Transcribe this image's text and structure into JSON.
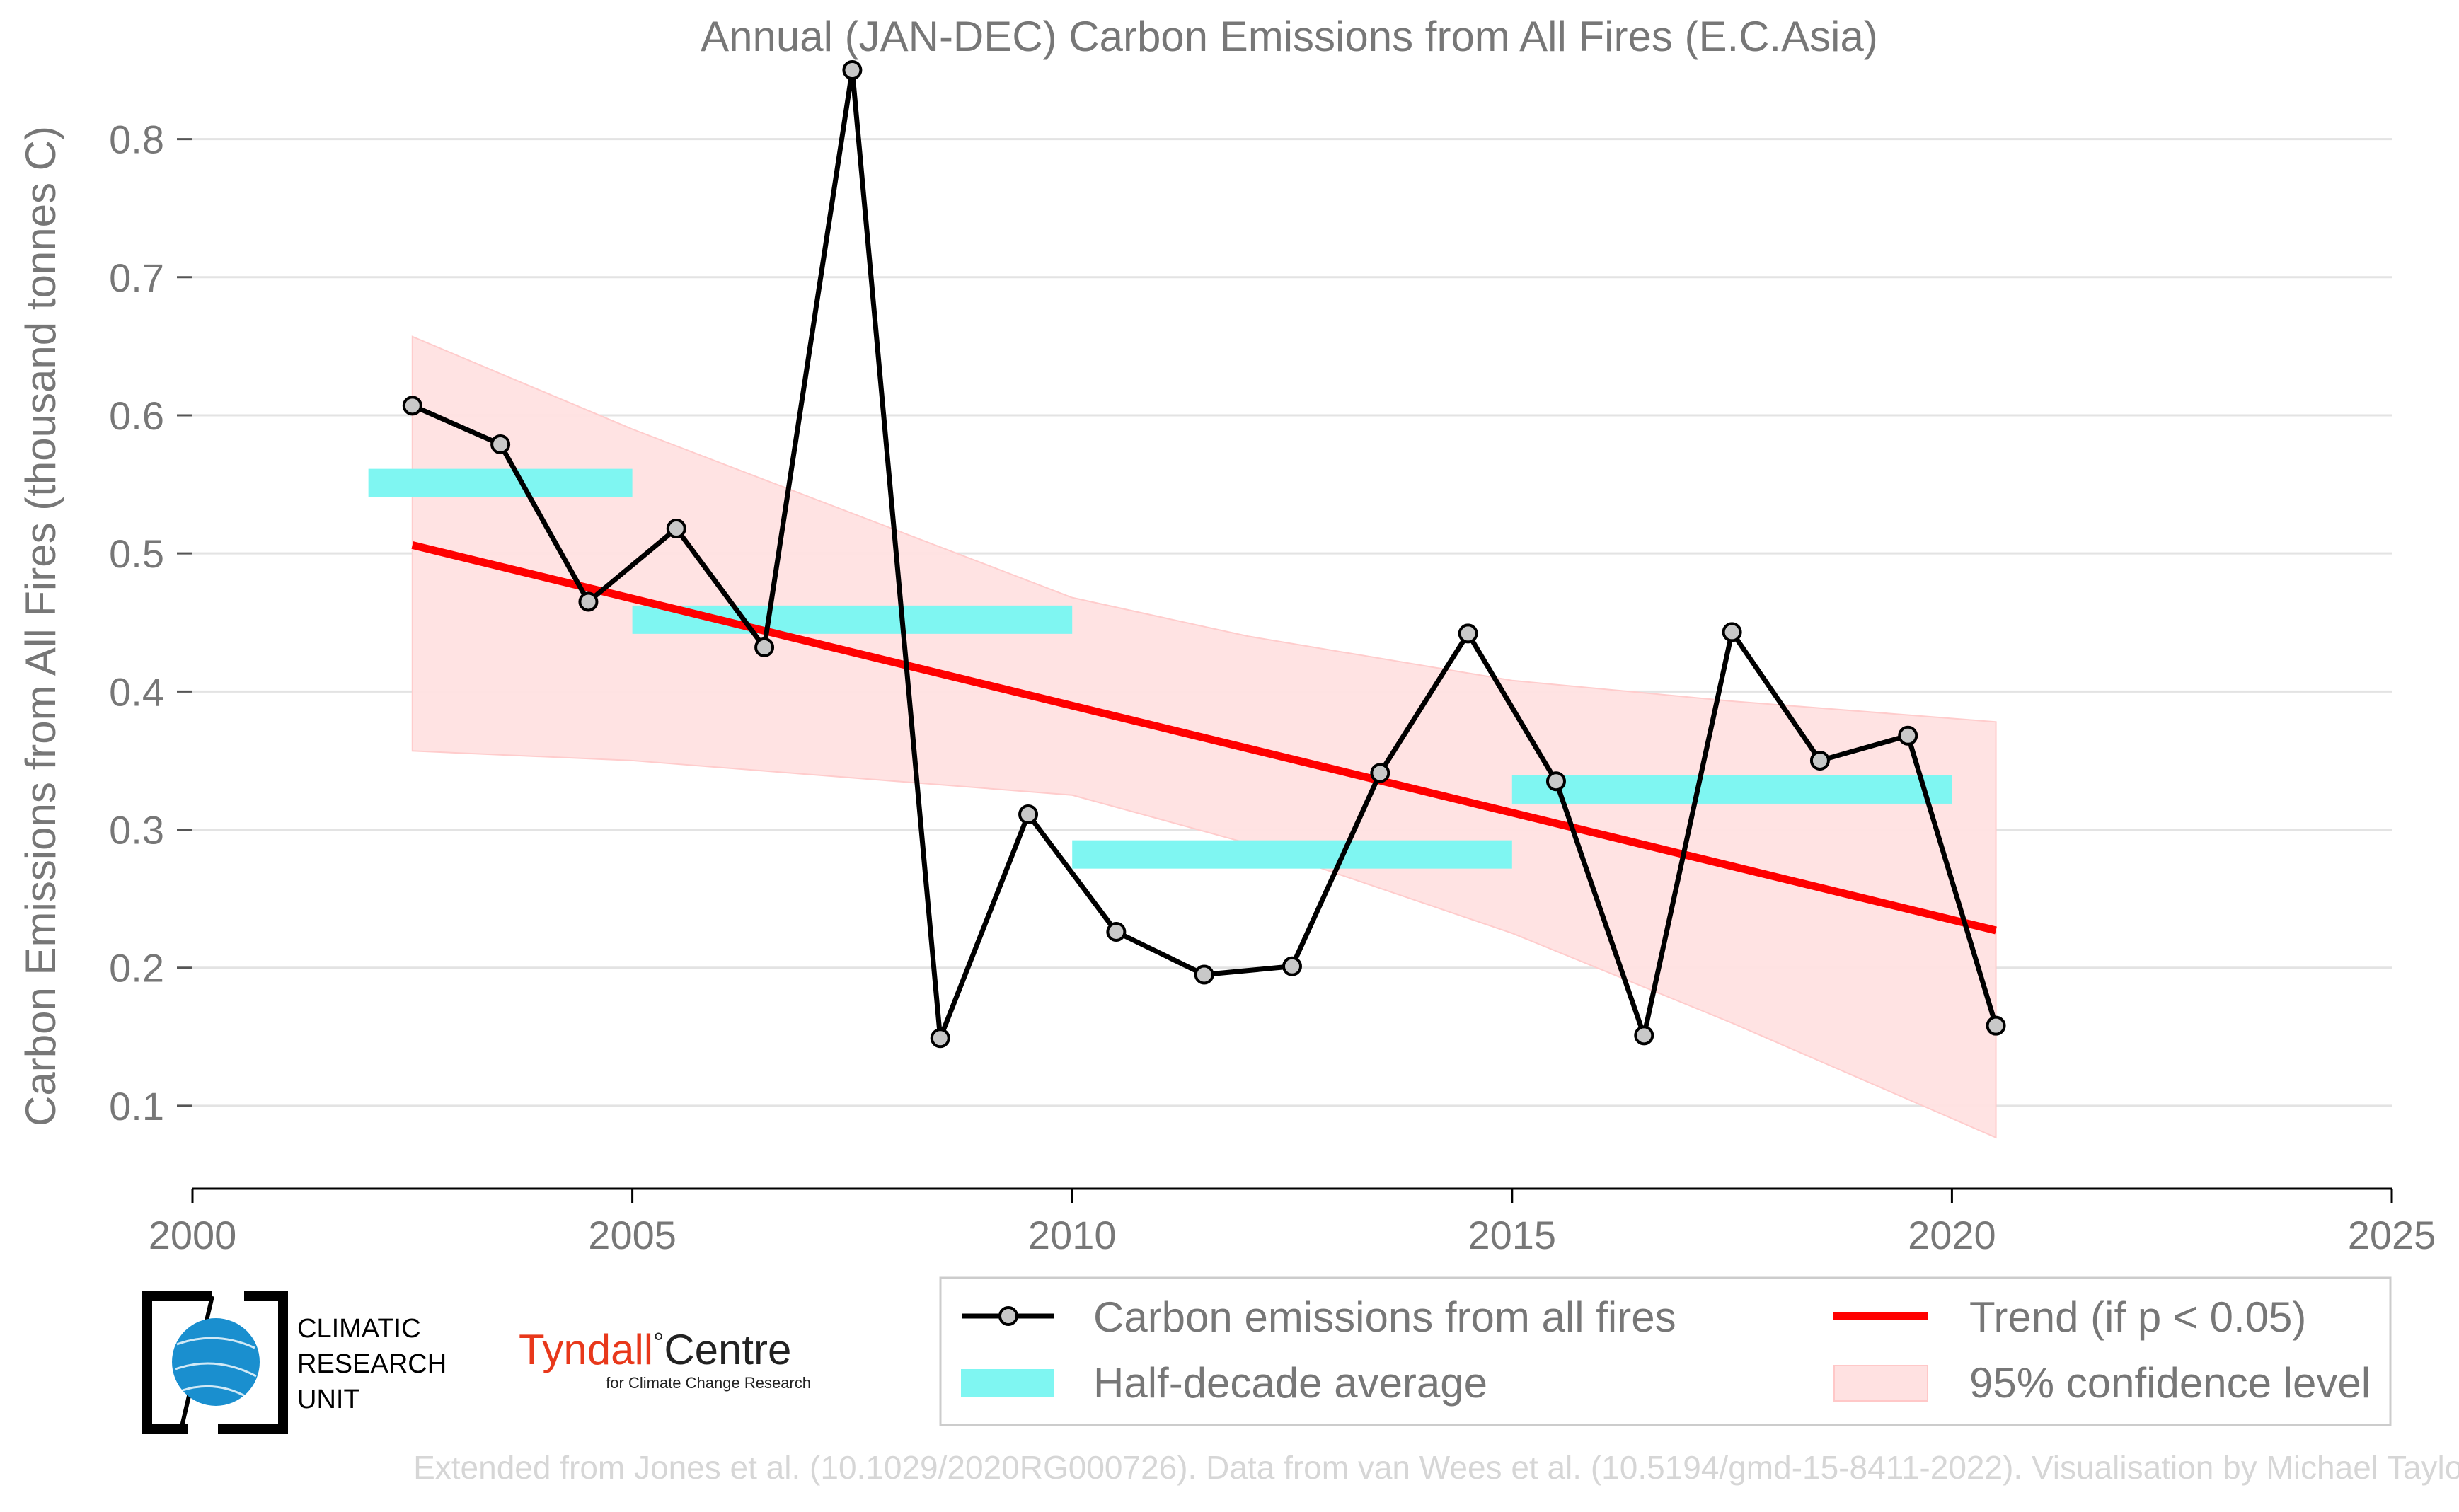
{
  "chart_data": {
    "type": "line",
    "title": "Annual (JAN-DEC) Carbon Emissions from All Fires (E.C.Asia)",
    "xlabel": "",
    "ylabel": "Carbon Emissions from All Fires (thousand tonnes C)",
    "xlim": [
      2000,
      2025
    ],
    "ylim": [
      0.04,
      0.87
    ],
    "x_ticks": [
      "2000",
      "2005",
      "2010",
      "2015",
      "2020",
      "2025"
    ],
    "y_ticks": [
      "0.1",
      "0.2",
      "0.3",
      "0.4",
      "0.5",
      "0.6",
      "0.7",
      "0.8"
    ],
    "grid": "horizontal",
    "legend_position": "bottom",
    "series": [
      {
        "name": "Carbon emissions from all fires",
        "color": "#000000",
        "marker_fill": "#c8c8c8",
        "x": [
          2002.5,
          2003.5,
          2004.5,
          2005.5,
          2006.5,
          2007.5,
          2008.5,
          2009.5,
          2010.5,
          2011.5,
          2012.5,
          2013.5,
          2014.5,
          2015.5,
          2016.5,
          2017.5,
          2018.5,
          2019.5,
          2020.5
        ],
        "y": [
          0.607,
          0.579,
          0.465,
          0.518,
          0.432,
          0.85,
          0.149,
          0.311,
          0.226,
          0.195,
          0.201,
          0.341,
          0.442,
          0.335,
          0.151,
          0.443,
          0.35,
          0.368,
          0.158
        ]
      },
      {
        "name": "Half-decade average",
        "color": "#7ff6f2",
        "periods": [
          [
            2002,
            2005
          ],
          [
            2005,
            2010
          ],
          [
            2010,
            2015
          ],
          [
            2015,
            2020
          ]
        ],
        "y": [
          0.551,
          0.452,
          0.282,
          0.329
        ]
      },
      {
        "name": "Trend (if p < 0.05)",
        "color": "#ff0000",
        "x": [
          2002.5,
          2020.5
        ],
        "y": [
          0.506,
          0.227
        ]
      },
      {
        "name": "95% confidence level",
        "color": "#ffe1e1",
        "x": [
          2002.5,
          2005.0,
          2010.0,
          2012.0,
          2015.0,
          2017.5,
          2020.5
        ],
        "upper": [
          0.657,
          0.59,
          0.468,
          0.44,
          0.408,
          0.393,
          0.378
        ],
        "lower": [
          0.357,
          0.35,
          0.325,
          0.29,
          0.225,
          0.16,
          0.077
        ]
      }
    ]
  },
  "legend": {
    "items": [
      "Carbon emissions from all fires",
      "Trend (if p < 0.05)",
      "Half-decade average",
      "95% confidence level"
    ]
  },
  "logos": {
    "cru": {
      "line1": "CLIMATIC",
      "line2": "RESEARCH",
      "line3": "UNIT"
    },
    "tyndall": {
      "name_left": "Tyndall",
      "degree": "°",
      "name_right": "Centre",
      "tagline": "for Climate Change Research",
      "color": "#e8381b"
    }
  },
  "footer": {
    "credit": "Extended from Jones et al. (10.1029/2020RG000726). Data from van Wees et al. (10.5194/gmd-15-8411-2022). Visualisation by Michael Taylor."
  }
}
